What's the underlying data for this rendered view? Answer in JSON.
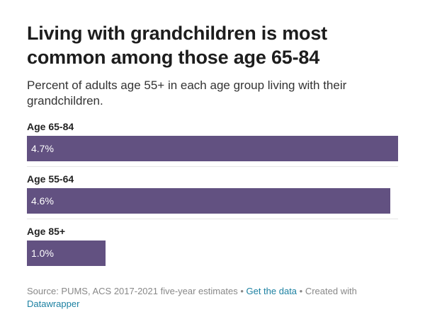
{
  "title": "Living with grandchildren is most common among those age 65-84",
  "subtitle": "Percent of adults age 55+ in each age group living with their grandchildren.",
  "footer": {
    "source": "Source: PUMS, ACS 2017-2021 five-year estimates",
    "separator": " • ",
    "get_data_label": "Get the data",
    "created_with": "Created with",
    "datawrapper_label": "Datawrapper"
  },
  "colors": {
    "bar": "#625181",
    "link": "#1d81a2"
  },
  "chart_data": {
    "type": "bar",
    "orientation": "horizontal",
    "title": "Living with grandchildren is most common among those age 65-84",
    "subtitle": "Percent of adults age 55+ in each age group living with their grandchildren.",
    "categories": [
      "Age 65-84",
      "Age 55-64",
      "Age 85+"
    ],
    "values": [
      4.7,
      4.6,
      1.0
    ],
    "value_labels": [
      "4.7%",
      "4.6%",
      "1.0%"
    ],
    "unit": "%",
    "xlim": [
      0,
      4.7
    ],
    "grid": false,
    "legend": "none"
  }
}
